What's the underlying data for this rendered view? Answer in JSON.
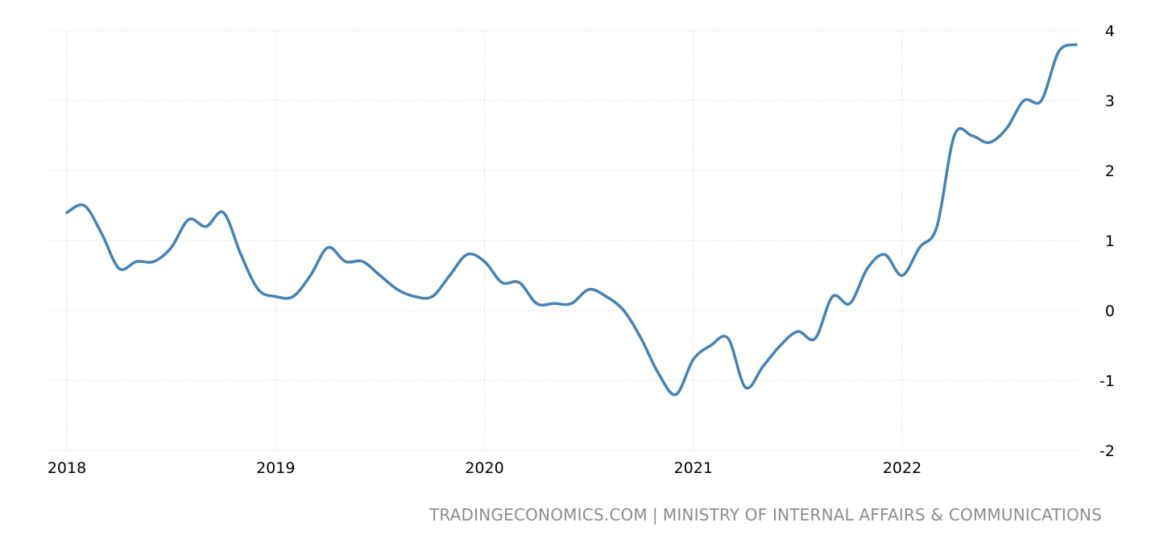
{
  "chart_data": {
    "type": "line",
    "title": "",
    "xlabel": "",
    "ylabel": "",
    "ylim": [
      -2,
      4
    ],
    "y_ticks": [
      "4",
      "3",
      "2",
      "1",
      "0",
      "-1",
      "-2"
    ],
    "y_tick_values": [
      4,
      3,
      2,
      1,
      0,
      -1,
      -2
    ],
    "x_ticks": [
      "2018",
      "2019",
      "2020",
      "2021",
      "2022"
    ],
    "x_tick_values": [
      "2018-01",
      "2019-01",
      "2020-01",
      "2021-01",
      "2022-01"
    ],
    "y_axis_side": "right",
    "grid": true,
    "legend": "none",
    "series": [
      {
        "color": "#4682b4",
        "x": [
          "2018-01",
          "2018-02",
          "2018-03",
          "2018-04",
          "2018-05",
          "2018-06",
          "2018-07",
          "2018-08",
          "2018-09",
          "2018-10",
          "2018-11",
          "2018-12",
          "2019-01",
          "2019-02",
          "2019-03",
          "2019-04",
          "2019-05",
          "2019-06",
          "2019-07",
          "2019-08",
          "2019-09",
          "2019-10",
          "2019-11",
          "2019-12",
          "2020-01",
          "2020-02",
          "2020-03",
          "2020-04",
          "2020-05",
          "2020-06",
          "2020-07",
          "2020-08",
          "2020-09",
          "2020-10",
          "2020-11",
          "2020-12",
          "2021-01",
          "2021-02",
          "2021-03",
          "2021-04",
          "2021-05",
          "2021-06",
          "2021-07",
          "2021-08",
          "2021-09",
          "2021-10",
          "2021-11",
          "2021-12",
          "2022-01",
          "2022-02",
          "2022-03",
          "2022-04",
          "2022-05",
          "2022-06",
          "2022-07",
          "2022-08",
          "2022-09",
          "2022-10",
          "2022-11"
        ],
        "values": [
          1.4,
          1.5,
          1.1,
          0.6,
          0.7,
          0.7,
          0.9,
          1.3,
          1.2,
          1.4,
          0.8,
          0.3,
          0.2,
          0.2,
          0.5,
          0.9,
          0.7,
          0.7,
          0.5,
          0.3,
          0.2,
          0.2,
          0.5,
          0.8,
          0.7,
          0.4,
          0.4,
          0.1,
          0.1,
          0.1,
          0.3,
          0.2,
          0.0,
          -0.4,
          -0.9,
          -1.2,
          -0.7,
          -0.5,
          -0.4,
          -1.1,
          -0.8,
          -0.5,
          -0.3,
          -0.4,
          0.2,
          0.1,
          0.6,
          0.8,
          0.5,
          0.9,
          1.2,
          2.5,
          2.5,
          2.4,
          2.6,
          3.0,
          3.0,
          3.7,
          3.8
        ]
      }
    ]
  },
  "source": {
    "site": "TRADINGECONOMICS.COM",
    "separator": "|",
    "provider": "MINISTRY OF INTERNAL AFFAIRS & COMMUNICATIONS"
  }
}
